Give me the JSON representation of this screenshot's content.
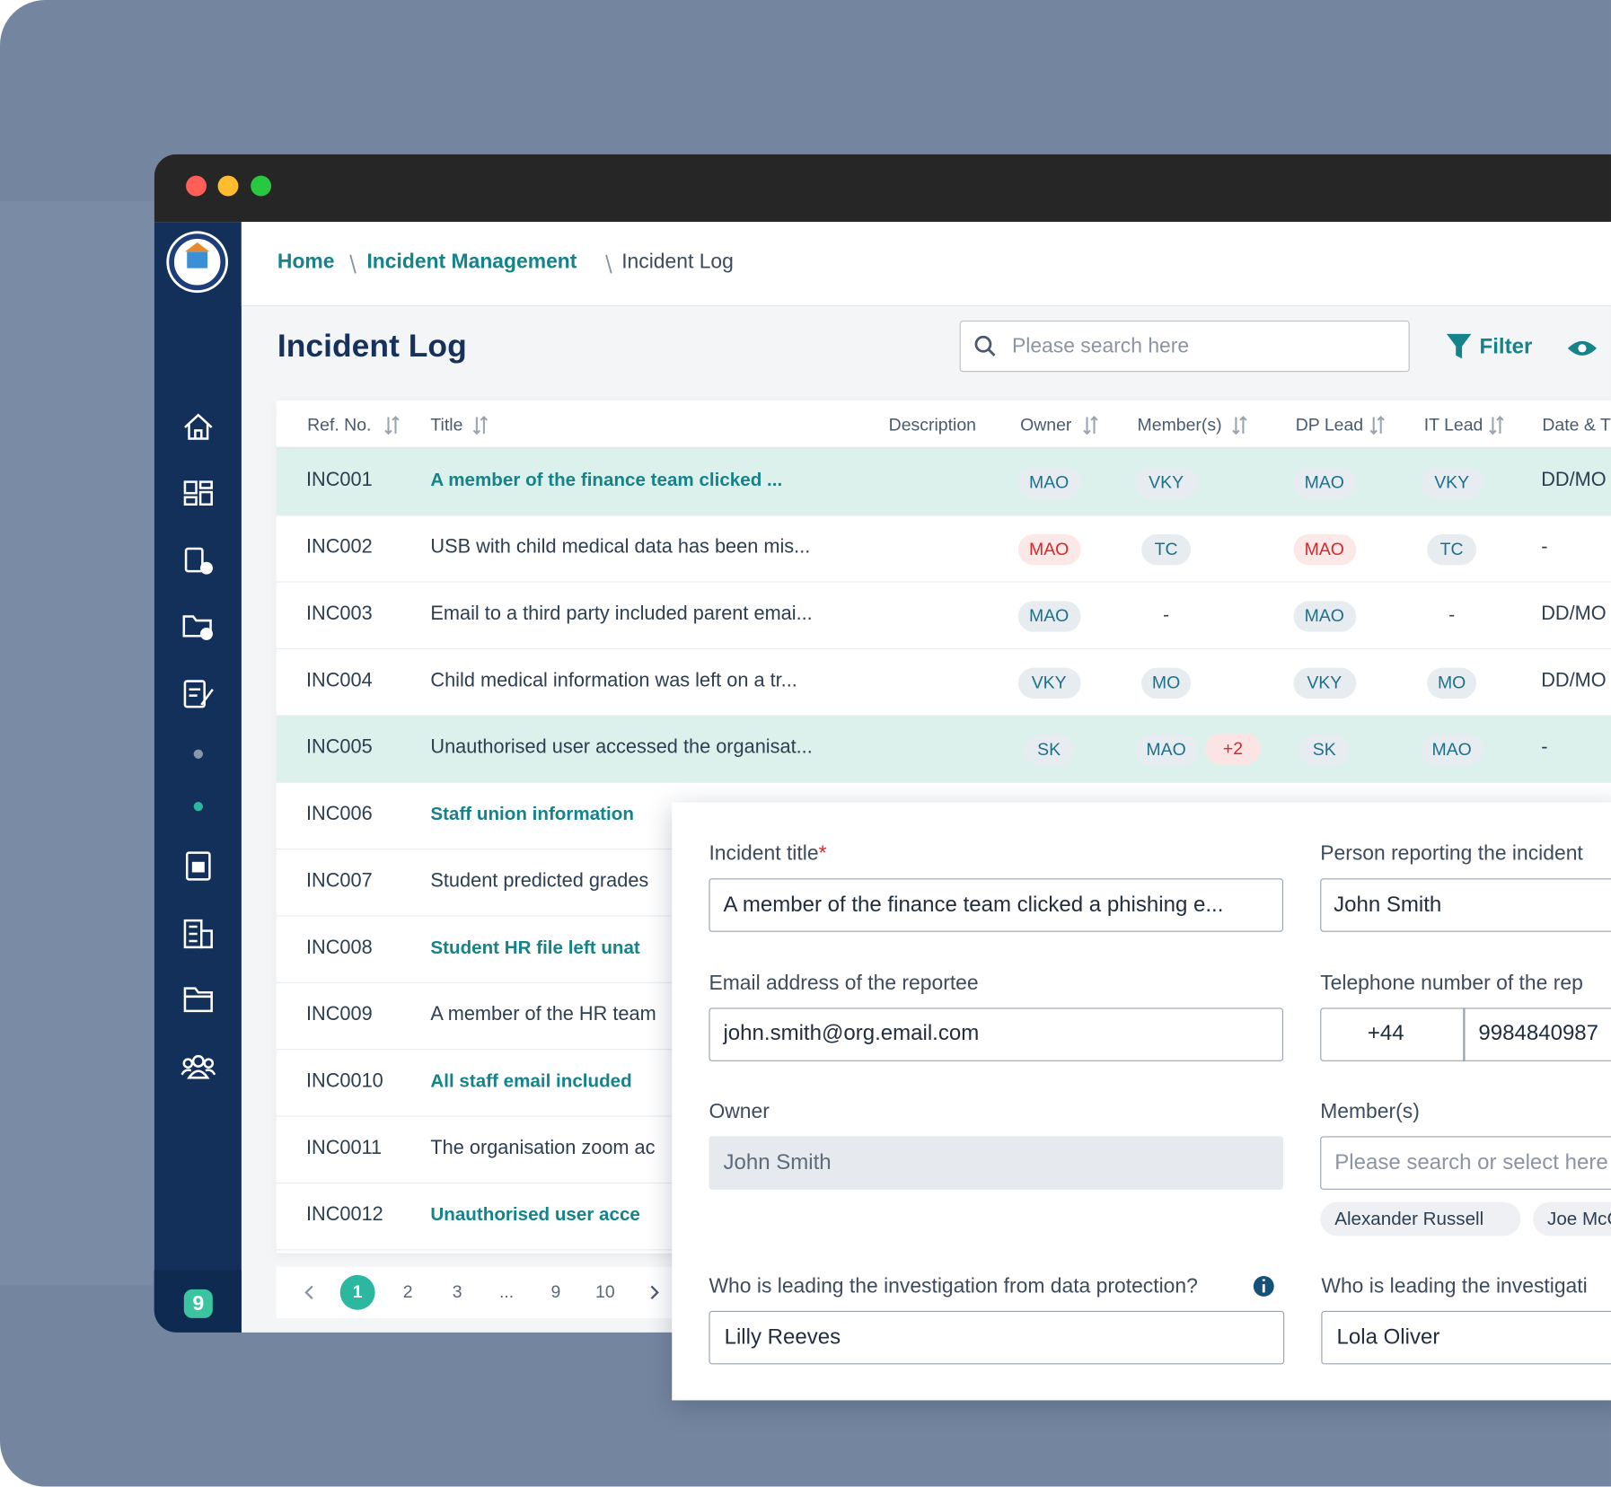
{
  "breadcrumb": [
    "Home",
    "Incident Management",
    "Incident Log"
  ],
  "page_title": "Incident Log",
  "search_placeholder": "Please search here",
  "filter_label": "Filter",
  "app_badge": "9",
  "table": {
    "columns": [
      "Ref. No.",
      "Title",
      "Description",
      "Owner",
      "Member(s)",
      "DP Lead",
      "IT Lead",
      "Date & T"
    ],
    "rows": [
      {
        "ref": "INC001",
        "title": "A member of the finance team clicked ...",
        "emphasis": true,
        "highlighted": true,
        "owner": "MAO",
        "members": [
          "VKY"
        ],
        "dp_lead": "MAO",
        "it_lead": "VKY",
        "date": "DD/MO"
      },
      {
        "ref": "INC002",
        "title": "USB with child medical data has been mis...",
        "emphasis": false,
        "highlighted": false,
        "owner": "MAO",
        "owner_alert": true,
        "members": [
          "TC"
        ],
        "dp_lead": "MAO",
        "dp_lead_alert": true,
        "it_lead": "TC",
        "date": "-"
      },
      {
        "ref": "INC003",
        "title": "Email to a third party included parent emai...",
        "emphasis": false,
        "highlighted": false,
        "owner": "MAO",
        "members": [
          "-"
        ],
        "dp_lead": "MAO",
        "it_lead": "-",
        "date": "DD/MO"
      },
      {
        "ref": "INC004",
        "title": "Child medical information was left on a tr...",
        "emphasis": false,
        "highlighted": false,
        "owner": "VKY",
        "members": [
          "MO"
        ],
        "dp_lead": "VKY",
        "it_lead": "MO",
        "date": "DD/MO"
      },
      {
        "ref": "INC005",
        "title": "Unauthorised user accessed the organisat...",
        "emphasis": false,
        "highlighted": true,
        "owner": "SK",
        "members": [
          "MAO"
        ],
        "members_more": "+2",
        "dp_lead": "SK",
        "it_lead": "MAO",
        "date": "-"
      },
      {
        "ref": "INC006",
        "title": "Staff union information",
        "emphasis": true,
        "highlighted": false
      },
      {
        "ref": "INC007",
        "title": "Student predicted grades",
        "emphasis": false,
        "highlighted": false
      },
      {
        "ref": "INC008",
        "title": "Student HR file left unat",
        "emphasis": true,
        "highlighted": false
      },
      {
        "ref": "INC009",
        "title": "A member of the HR team",
        "emphasis": false,
        "highlighted": false
      },
      {
        "ref": "INC0010",
        "title": "All staff email included",
        "emphasis": true,
        "highlighted": false
      },
      {
        "ref": "INC0011",
        "title": "The organisation zoom ac",
        "emphasis": false,
        "highlighted": false
      },
      {
        "ref": "INC0012",
        "title": "Unauthorised user acce",
        "emphasis": true,
        "highlighted": false
      }
    ]
  },
  "pagination": {
    "pages": [
      "1",
      "2",
      "3",
      "...",
      "9",
      "10"
    ],
    "current_index": 0
  },
  "form": {
    "incident_title": {
      "label": "Incident title",
      "required_mark": "*",
      "value": "A member of the finance team clicked a phishing e..."
    },
    "reporter": {
      "label": "Person reporting the incident",
      "value": "John Smith"
    },
    "email": {
      "label": "Email address of the reportee",
      "value": "john.smith@org.email.com"
    },
    "phone": {
      "label": "Telephone number of the rep",
      "country_code": "+44",
      "value": "9984840987"
    },
    "owner": {
      "label": "Owner",
      "value": "John Smith"
    },
    "members": {
      "label": "Member(s)",
      "placeholder": "Please search or select here",
      "chips": [
        "Alexander Russell",
        "Joe McC"
      ]
    },
    "dp_lead": {
      "label": "Who is leading the investigation from data protection?",
      "value": "Lilly Reeves"
    },
    "it_lead": {
      "label": "Who is leading the investigati",
      "value": "Lola Oliver"
    }
  }
}
